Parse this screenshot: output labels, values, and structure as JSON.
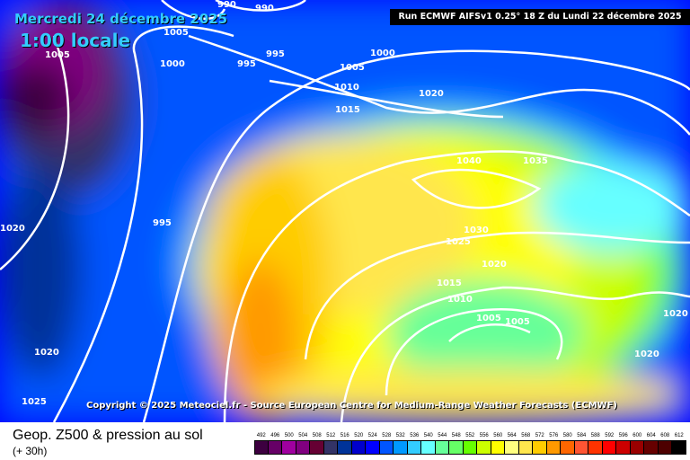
{
  "header": {
    "date": "Mercredi 24 décembre 2025",
    "local_time": "1:00 locale",
    "run": "Run ECMWF AIFSv1 0.25° 18 Z du Lundi 22 décembre 2025"
  },
  "copyright": "Copyright © 2025 Meteociel.fr - Source European Centre for Medium-Range Weather Forecasts (ECMWF)",
  "isobar_labels": [
    "990",
    "990",
    "1005",
    "1005",
    "1000",
    "995",
    "995",
    "1000",
    "1005",
    "1010",
    "1015",
    "1020",
    "1040",
    "1035",
    "995",
    "1020",
    "1030",
    "1025",
    "1020",
    "1015",
    "1010",
    "1005",
    "1005",
    "1020",
    "1020",
    "1020",
    "1025"
  ],
  "footer": {
    "title": "Geop. Z500 & pression au sol",
    "lead": "(+ 30h)"
  },
  "legend": {
    "values": [
      "492",
      "496",
      "500",
      "504",
      "508",
      "512",
      "516",
      "520",
      "524",
      "528",
      "532",
      "536",
      "540",
      "544",
      "548",
      "552",
      "556",
      "560",
      "564",
      "568",
      "572",
      "576",
      "580",
      "584",
      "588",
      "592",
      "596",
      "600",
      "604",
      "608",
      "612"
    ],
    "colors": [
      "#3d0040",
      "#660066",
      "#a000a0",
      "#800080",
      "#660033",
      "#333366",
      "#003399",
      "#0000cc",
      "#0000ff",
      "#0055ff",
      "#0099ff",
      "#33ccff",
      "#66ffff",
      "#66ff99",
      "#66ff66",
      "#66ff00",
      "#ccff00",
      "#ffff00",
      "#ffff80",
      "#ffe64d",
      "#ffcc00",
      "#ff9900",
      "#ff6600",
      "#ff5533",
      "#ff3300",
      "#ff0000",
      "#cc0000",
      "#990000",
      "#660000",
      "#4d0000",
      "#000000"
    ]
  }
}
